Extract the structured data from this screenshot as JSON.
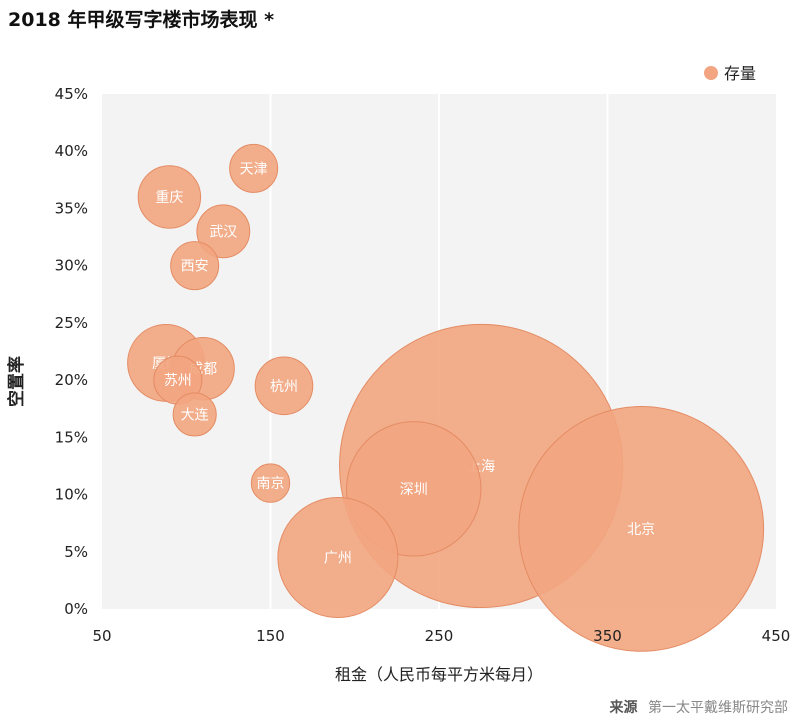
{
  "chart_data": {
    "type": "bubble",
    "title": "2018 年甲级写字楼市场表现 *",
    "xlabel": "租金（人民币每平方米每月）",
    "ylabel": "空置率",
    "xlim": [
      50,
      450
    ],
    "ylim": [
      0,
      45
    ],
    "xticks": [
      "50",
      "150",
      "250",
      "350",
      "450"
    ],
    "yticks": [
      "0%",
      "5%",
      "10%",
      "15%",
      "20%",
      "25%",
      "30%",
      "35%",
      "40%",
      "45%"
    ],
    "grid": "vertical",
    "legend": {
      "position": "top-right",
      "entries": [
        "存量"
      ]
    },
    "colors": {
      "bubble": "#F2A580",
      "bubble_stroke": "#E48C64",
      "label": "#ffffff"
    },
    "points": [
      {
        "label": "天津",
        "x": 140,
        "y": 38.5,
        "size": 1.0
      },
      {
        "label": "重庆",
        "x": 90,
        "y": 36,
        "size": 1.3
      },
      {
        "label": "武汉",
        "x": 122,
        "y": 33,
        "size": 1.1
      },
      {
        "label": "西安",
        "x": 105,
        "y": 30,
        "size": 1.0
      },
      {
        "label": "厦门",
        "x": 88,
        "y": 21.5,
        "size": 1.6
      },
      {
        "label": "成都",
        "x": 110,
        "y": 21,
        "size": 1.3
      },
      {
        "label": "苏州",
        "x": 95,
        "y": 20,
        "size": 1.0
      },
      {
        "label": "杭州",
        "x": 158,
        "y": 19.5,
        "size": 1.2
      },
      {
        "label": "大连",
        "x": 105,
        "y": 17,
        "size": 0.9
      },
      {
        "label": "南京",
        "x": 150,
        "y": 11,
        "size": 0.8
      },
      {
        "label": "上海",
        "x": 275,
        "y": 12.5,
        "size": 5.9
      },
      {
        "label": "深圳",
        "x": 235,
        "y": 10.5,
        "size": 2.8
      },
      {
        "label": "北京",
        "x": 370,
        "y": 7,
        "size": 5.1
      },
      {
        "label": "广州",
        "x": 190,
        "y": 4.5,
        "size": 2.5
      }
    ]
  },
  "source": {
    "label": "来源",
    "text": "第一太平戴维斯研究部"
  }
}
